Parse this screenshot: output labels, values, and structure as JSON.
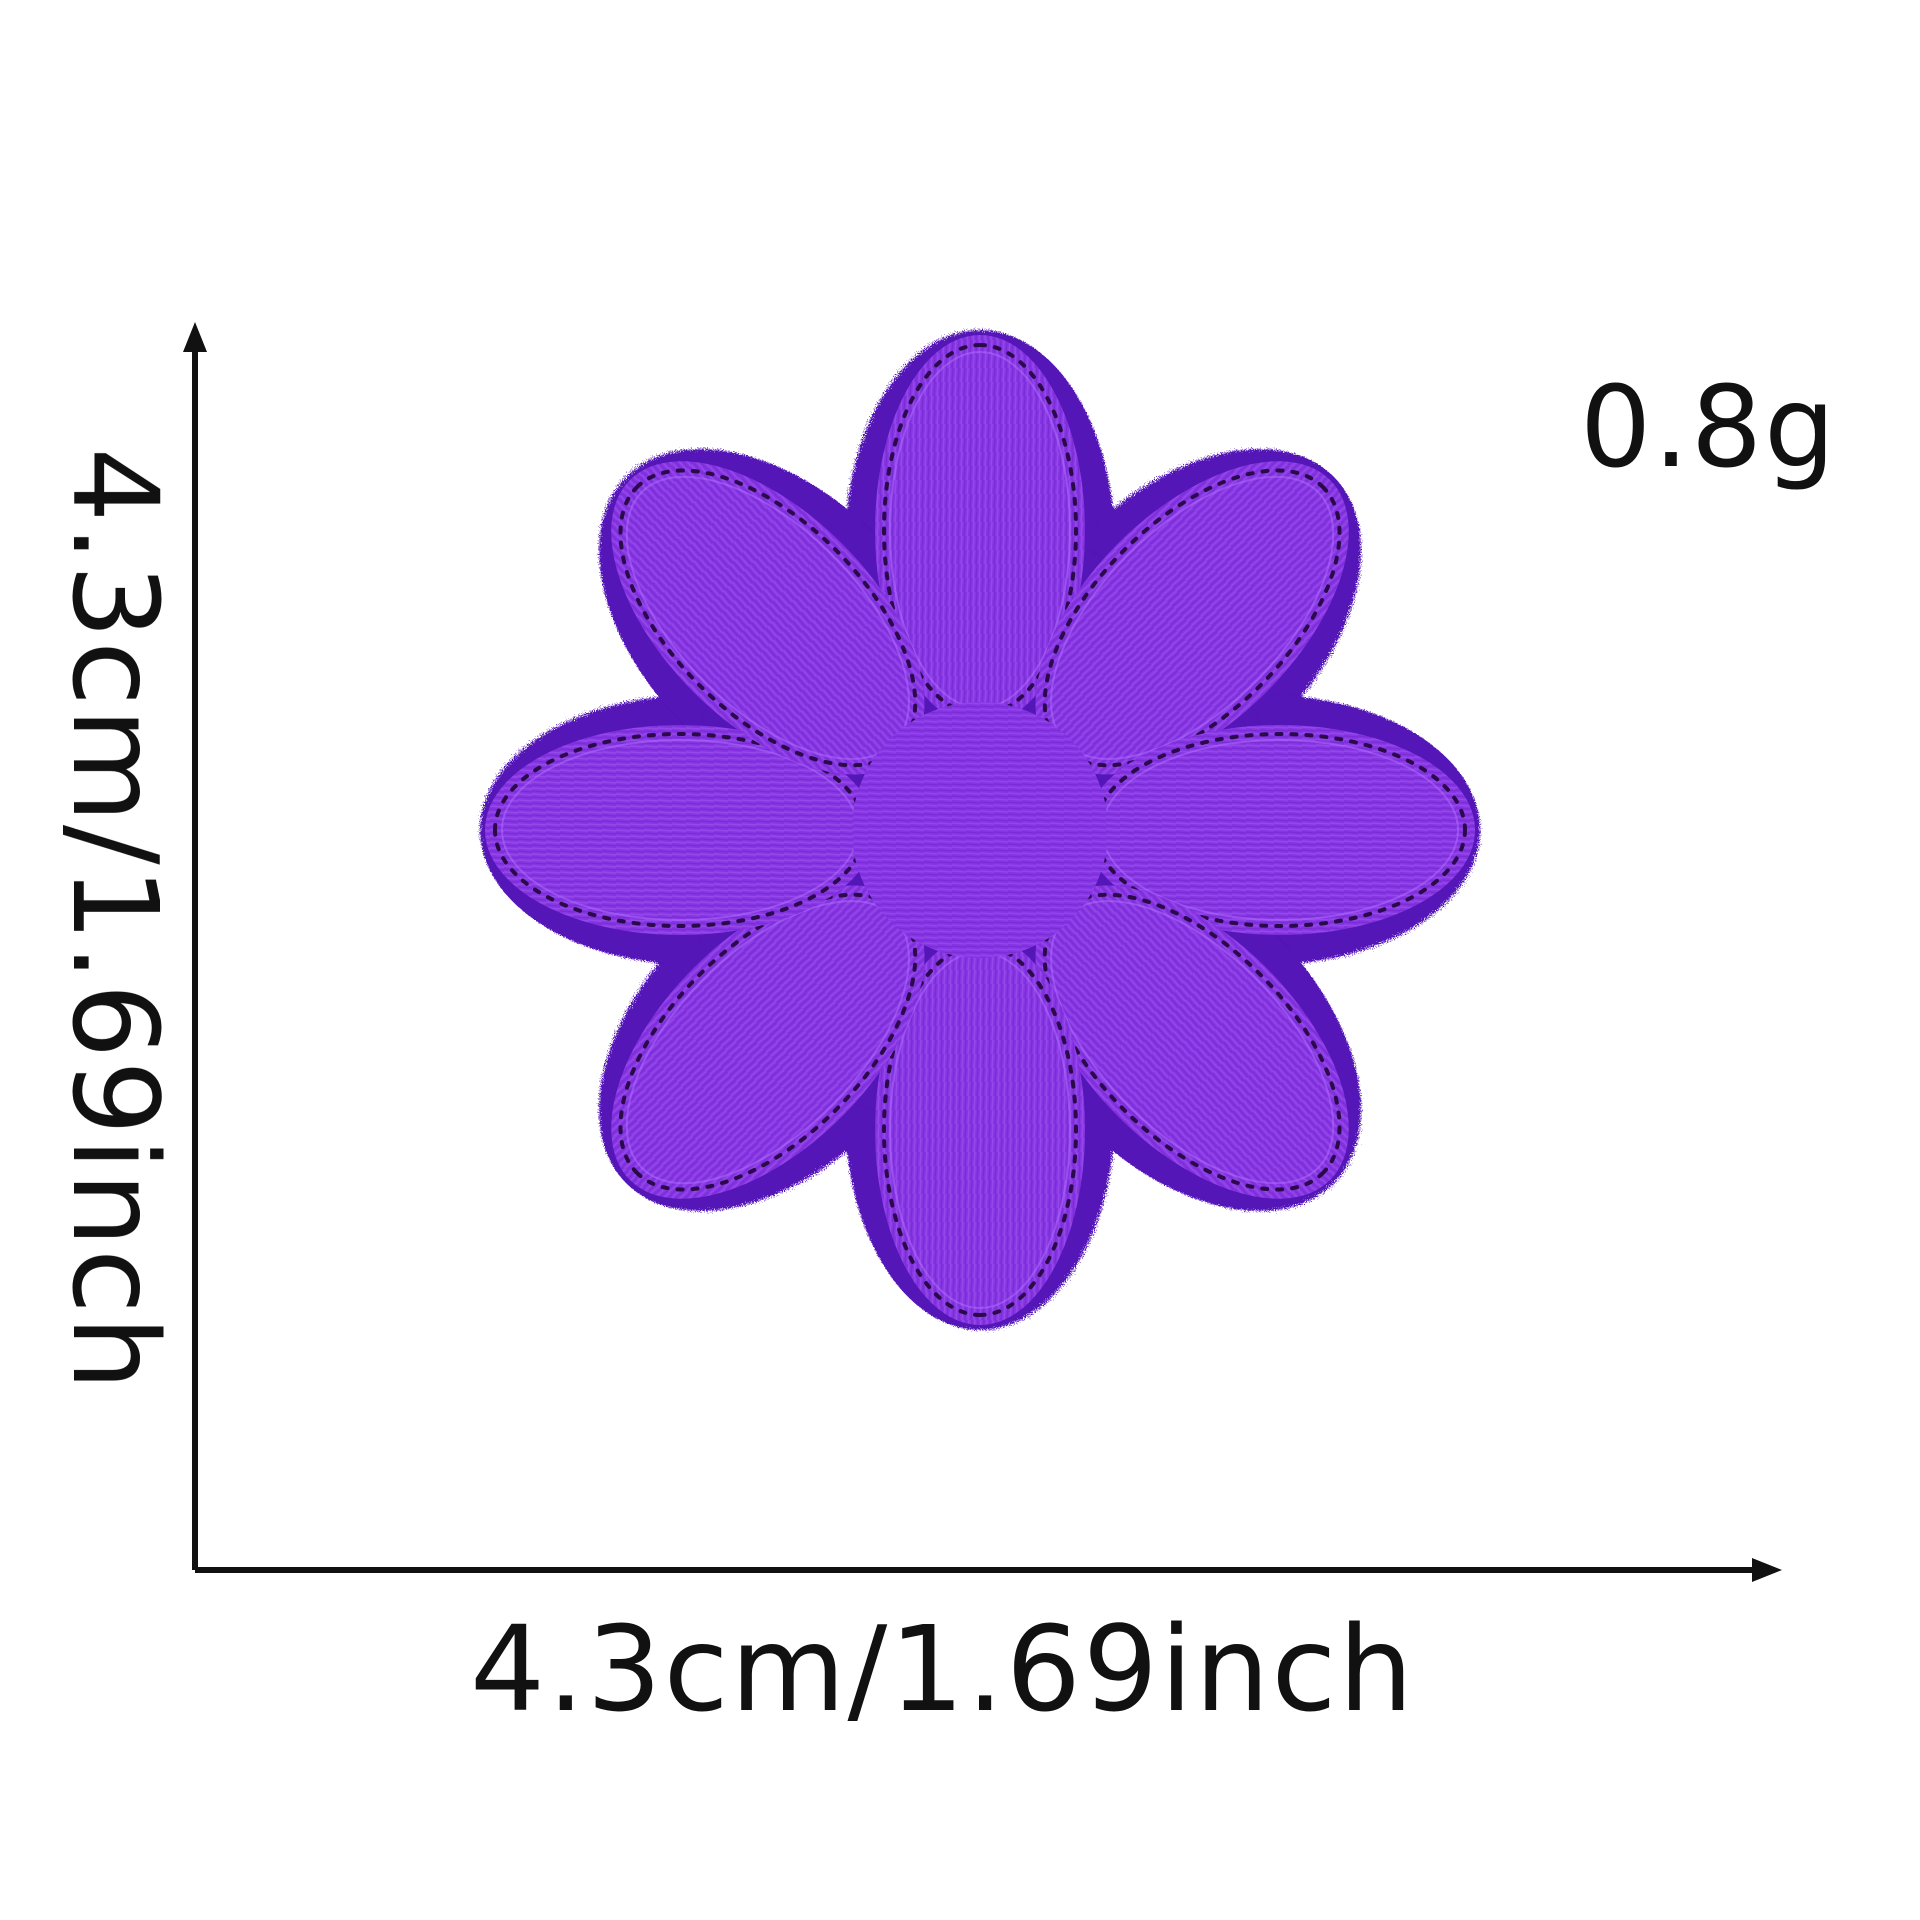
{
  "product": {
    "weight": "0.8g",
    "width_label": "4.3cm/1.69inch",
    "height_label": "4.3cm/1.69inch"
  },
  "colors": {
    "felt_backing": "#5512b8",
    "petal": "#8a3ae6",
    "petal_shade": "#7a2bd8",
    "stitch": "#2a0a4a",
    "axis": "#111111"
  },
  "icons": {
    "patch": "flower-patch-icon",
    "vertical_arrow": "arrow-up-icon",
    "horizontal_arrow": "arrow-right-icon"
  }
}
